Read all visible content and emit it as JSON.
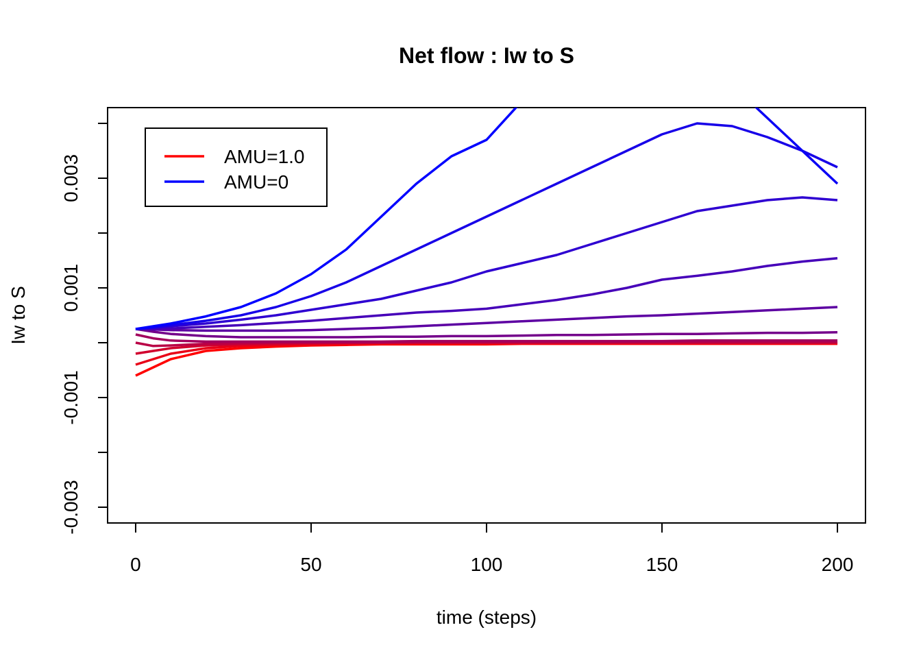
{
  "chart_data": {
    "type": "line",
    "title": "Net flow : Iw to S",
    "xlabel": "time (steps)",
    "ylabel": "Iw to S",
    "x": [
      0,
      5,
      10,
      20,
      30,
      40,
      50,
      60,
      70,
      80,
      90,
      100,
      110,
      120,
      130,
      140,
      150,
      160,
      170,
      180,
      190,
      200
    ],
    "xlim": [
      -8,
      208
    ],
    "xticks": [
      0,
      50,
      100,
      150,
      200
    ],
    "ylim": [
      -0.0032875,
      0.0042875
    ],
    "yticks": [
      -0.003,
      {
        "value": -0.002,
        "label": null
      },
      -0.001,
      {
        "value": 0,
        "label": null
      },
      0.001,
      {
        "value": 0.002,
        "label": null
      },
      0.003,
      {
        "value": 0.004,
        "label": null
      }
    ],
    "legend_position": "topleft",
    "series": [
      {
        "name": "AMU=1.0",
        "color": "#FF0000",
        "values": [
          -0.0006,
          -0.00045,
          -0.0003,
          -0.00015,
          -0.0001,
          -7e-05,
          -5e-05,
          -4e-05,
          -3e-05,
          -3e-05,
          -3e-05,
          -3e-05,
          -2e-05,
          -2e-05,
          -2e-05,
          -2e-05,
          -2e-05,
          -2e-05,
          -2e-05,
          -2e-05,
          -2e-05,
          -2e-05
        ]
      },
      {
        "color": "#E80017",
        "values": [
          -0.0004,
          -0.0003,
          -0.0002,
          -0.0001,
          -6e-05,
          -4e-05,
          -3e-05,
          -2e-05,
          -1e-05,
          -1e-05,
          -1e-05,
          -1e-05,
          -1e-05,
          -1e-05,
          -1e-05,
          -1e-05,
          -1e-05,
          -1e-05,
          -1e-05,
          -1e-05,
          -1e-05,
          -1e-05
        ]
      },
      {
        "color": "#D1002E",
        "values": [
          -0.0002,
          -0.00015,
          -0.0001,
          -5e-05,
          -3e-05,
          -2e-05,
          -1e-05,
          0,
          0,
          0,
          0,
          0,
          0,
          0,
          0,
          0,
          0,
          0,
          0,
          0,
          0,
          0
        ]
      },
      {
        "color": "#B90046",
        "values": [
          0,
          -6e-05,
          -5e-05,
          -2e-05,
          -1e-05,
          0,
          0,
          0,
          0,
          1e-05,
          1e-05,
          1e-05,
          1e-05,
          1e-05,
          1e-05,
          1e-05,
          1e-05,
          1e-05,
          1e-05,
          1e-05,
          1e-05,
          1e-05
        ]
      },
      {
        "color": "#A2005D",
        "values": [
          0.00015,
          8e-05,
          4e-05,
          2e-05,
          2e-05,
          2e-05,
          2e-05,
          2e-05,
          2e-05,
          3e-05,
          3e-05,
          3e-05,
          3e-05,
          3e-05,
          3e-05,
          3e-05,
          3e-05,
          4e-05,
          4e-05,
          4e-05,
          4e-05,
          4e-05
        ]
      },
      {
        "color": "#74008B",
        "values": [
          0.00025,
          0.0002,
          0.00016,
          0.00012,
          0.0001,
          0.0001,
          0.0001,
          0.0001,
          0.00011,
          0.00011,
          0.00012,
          0.00012,
          0.00013,
          0.00014,
          0.00014,
          0.00015,
          0.00016,
          0.00016,
          0.00017,
          0.00018,
          0.00018,
          0.00019
        ]
      },
      {
        "color": "#5D00A2",
        "values": [
          0.00025,
          0.00024,
          0.00023,
          0.00022,
          0.00022,
          0.00022,
          0.00023,
          0.00025,
          0.00027,
          0.0003,
          0.00033,
          0.00036,
          0.00039,
          0.00042,
          0.00045,
          0.00048,
          0.0005,
          0.00053,
          0.00056,
          0.00059,
          0.00062,
          0.00065
        ]
      },
      {
        "color": "#4600B9",
        "values": [
          0.00025,
          0.00025,
          0.00026,
          0.00029,
          0.00032,
          0.00036,
          0.0004,
          0.00045,
          0.0005,
          0.00055,
          0.00058,
          0.00062,
          0.0007,
          0.00078,
          0.00088,
          0.001,
          0.00115,
          0.00122,
          0.0013,
          0.0014,
          0.00148,
          0.00154
        ]
      },
      {
        "color": "#2E00D1",
        "values": [
          0.00025,
          0.00027,
          0.0003,
          0.00035,
          0.00042,
          0.0005,
          0.0006,
          0.0007,
          0.0008,
          0.00095,
          0.0011,
          0.0013,
          0.00145,
          0.0016,
          0.0018,
          0.002,
          0.0022,
          0.0024,
          0.0025,
          0.0026,
          0.00265,
          0.0026
        ]
      },
      {
        "color": "#1700E8",
        "values": [
          0.00025,
          0.00028,
          0.00032,
          0.0004,
          0.0005,
          0.00065,
          0.00085,
          0.0011,
          0.0014,
          0.0017,
          0.002,
          0.0023,
          0.0026,
          0.0029,
          0.0032,
          0.0035,
          0.0038,
          0.004,
          0.00395,
          0.00375,
          0.0035,
          0.0032
        ]
      },
      {
        "color": "#0A00F5",
        "values": [
          null,
          null,
          null,
          null,
          null,
          null,
          null,
          null,
          null,
          null,
          null,
          null,
          null,
          null,
          null,
          null,
          null,
          null,
          0.0047,
          0.0041,
          0.0035,
          0.0029
        ]
      },
      {
        "name": "AMU=0",
        "color": "#0000FF",
        "values": [
          0.00025,
          0.0003,
          0.00035,
          0.00048,
          0.00065,
          0.0009,
          0.00125,
          0.0017,
          0.0023,
          0.0029,
          0.0034,
          0.0037,
          0.0044,
          null,
          null,
          null,
          null,
          null,
          null,
          null,
          null,
          null
        ]
      }
    ]
  }
}
